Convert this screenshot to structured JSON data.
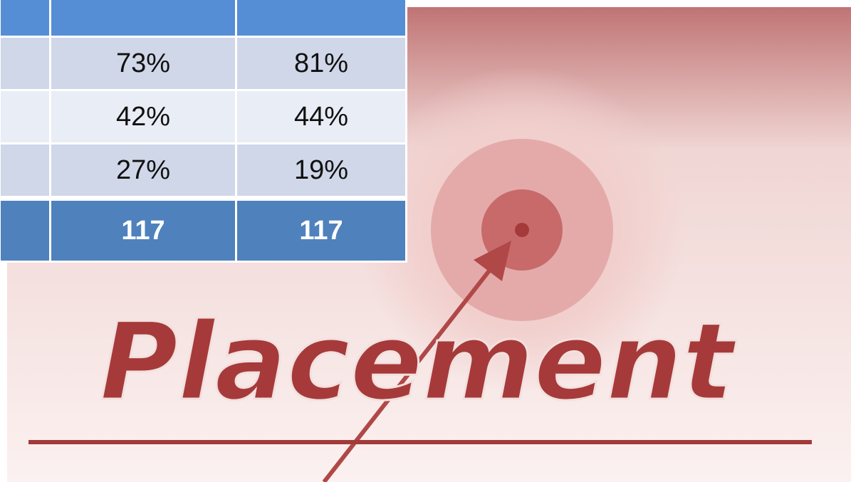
{
  "table": {
    "rows": [
      [
        "73%",
        "81%"
      ],
      [
        "42%",
        "44%"
      ],
      [
        "27%",
        "19%"
      ]
    ],
    "total": [
      "117",
      "117"
    ]
  },
  "banner": {
    "title": "Placement"
  }
}
